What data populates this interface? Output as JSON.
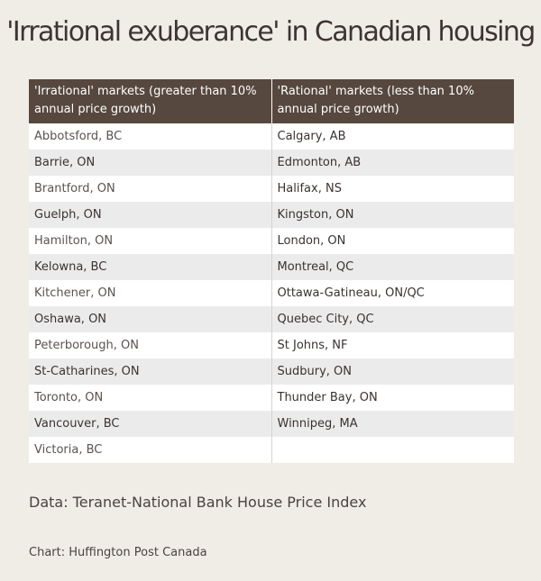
{
  "chart_data": {
    "type": "table",
    "title": "'Irrational exuberance' in Canadian housing",
    "columns": [
      "'Irrational' markets (greater than 10% annual price growth)",
      "'Rational' markets (less than 10% annual price growth)"
    ],
    "rows": [
      [
        "Abbotsford, BC",
        "Calgary, AB"
      ],
      [
        "Barrie, ON",
        "Edmonton, AB"
      ],
      [
        "Brantford, ON",
        "Halifax, NS"
      ],
      [
        "Guelph, ON",
        "Kingston, ON"
      ],
      [
        "Hamilton, ON",
        "London, ON"
      ],
      [
        "Kelowna, BC",
        "Montreal, QC"
      ],
      [
        "Kitchener, ON",
        "Ottawa-Gatineau, ON/QC"
      ],
      [
        "Oshawa, ON",
        "Quebec City, QC"
      ],
      [
        "Peterborough, ON",
        "St Johns, NF"
      ],
      [
        "St-Catharines, ON",
        "Sudbury, ON"
      ],
      [
        "Toronto, ON",
        "Thunder Bay, ON"
      ],
      [
        "Vancouver, BC",
        "Winnipeg, MA"
      ],
      [
        "Victoria, BC",
        ""
      ]
    ],
    "source": "Data: Teranet-National Bank House Price Index",
    "credit": "Chart: Huffington Post Canada"
  },
  "colors": {
    "background": "#f0ede6",
    "header_background": "#56483f",
    "header_text": "#ffffff",
    "row_light": "#ffffff",
    "row_dark": "#ebebeb"
  }
}
